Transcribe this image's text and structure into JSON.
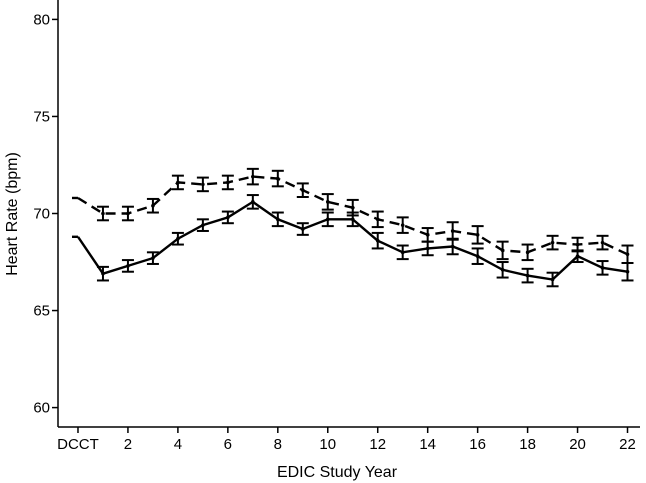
{
  "chart_data": {
    "type": "line",
    "title": "",
    "xlabel": "EDIC Study Year",
    "ylabel": "Heart Rate (bpm)",
    "ylim": [
      59,
      81
    ],
    "xlim": [
      -0.8,
      22.5
    ],
    "yticks": [
      60,
      65,
      70,
      75,
      80
    ],
    "xticks": [
      {
        "x": 0,
        "label": "DCCT"
      },
      {
        "x": 2,
        "label": "2"
      },
      {
        "x": 4,
        "label": "4"
      },
      {
        "x": 6,
        "label": "6"
      },
      {
        "x": 8,
        "label": "8"
      },
      {
        "x": 10,
        "label": "10"
      },
      {
        "x": 12,
        "label": "12"
      },
      {
        "x": 14,
        "label": "14"
      },
      {
        "x": 16,
        "label": "16"
      },
      {
        "x": 18,
        "label": "18"
      },
      {
        "x": 20,
        "label": "20"
      },
      {
        "x": 22,
        "label": "22"
      }
    ],
    "grid": false,
    "legend": "none",
    "x": [
      0,
      1,
      2,
      3,
      4,
      5,
      6,
      7,
      8,
      9,
      10,
      11,
      12,
      13,
      14,
      15,
      16,
      17,
      18,
      19,
      20,
      21,
      22
    ],
    "series": [
      {
        "style": "dashed",
        "color": "#000000",
        "values": [
          70.8,
          70.0,
          70.0,
          70.4,
          71.6,
          71.5,
          71.6,
          71.9,
          71.8,
          71.2,
          70.6,
          70.3,
          69.7,
          69.4,
          68.9,
          69.1,
          68.9,
          68.1,
          68.0,
          68.5,
          68.4,
          68.5,
          67.9
        ],
        "err": [
          0.0,
          0.35,
          0.35,
          0.35,
          0.35,
          0.35,
          0.35,
          0.4,
          0.4,
          0.35,
          0.4,
          0.4,
          0.4,
          0.4,
          0.35,
          0.45,
          0.45,
          0.45,
          0.4,
          0.35,
          0.35,
          0.35,
          0.45
        ]
      },
      {
        "style": "solid",
        "color": "#000000",
        "values": [
          68.8,
          66.9,
          67.3,
          67.7,
          68.7,
          69.4,
          69.8,
          70.6,
          69.7,
          69.2,
          69.7,
          69.7,
          68.6,
          68.0,
          68.2,
          68.3,
          67.8,
          67.1,
          66.8,
          66.6,
          67.8,
          67.2,
          67.0
        ]
      }
    ]
  }
}
